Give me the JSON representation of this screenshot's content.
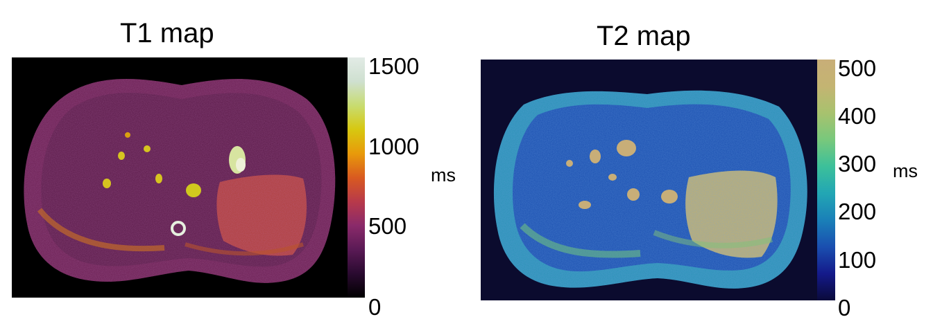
{
  "panels": [
    {
      "title": "T1 map",
      "unit": "ms",
      "colorbar_ticks": [
        "1500",
        "1000",
        "500",
        "0"
      ],
      "colormap": [
        "#000000",
        "#2a0a30",
        "#5a1a55",
        "#8a2a6a",
        "#b83a4a",
        "#d95a20",
        "#e89a0a",
        "#d7c810",
        "#c8dc70",
        "#cfe0d0",
        "#e2ebe6"
      ],
      "background_color": "#000000",
      "body_color": "#6a1f52"
    },
    {
      "title": "T2 map",
      "unit": "ms",
      "colorbar_ticks": [
        "500",
        "400",
        "300",
        "200",
        "100",
        "0"
      ],
      "colormap": [
        "#0a0a3a",
        "#141a8a",
        "#1a4fb0",
        "#1a80b8",
        "#22a6b4",
        "#3cc09a",
        "#78c87c",
        "#a8c26e",
        "#c4b472",
        "#c8ae78"
      ],
      "background_color": "#0b0b2e",
      "body_color": "#1f6fb3"
    }
  ]
}
